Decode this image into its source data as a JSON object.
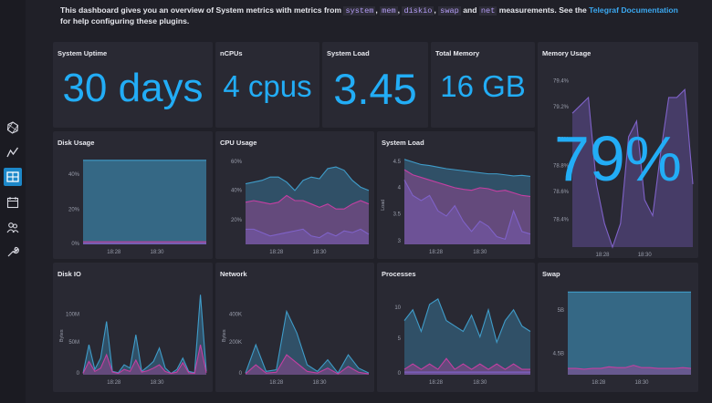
{
  "description": {
    "intro": "This dashboard gives you an overview of System metrics with metrics from",
    "tags": [
      "system",
      "mem",
      "diskio",
      "swap",
      "net"
    ],
    "and_text": "and",
    "measurements_text": "measurements. See the",
    "link": "Telegraf Documentation",
    "outro": "for help configuring these plugins."
  },
  "sidebar": {
    "icons": [
      "logo-icon",
      "graph-icon",
      "dashboards-icon",
      "calendar-icon",
      "users-icon",
      "wrench-icon"
    ],
    "active_index": 2,
    "active_color": "#1d88c9"
  },
  "colors": {
    "accent": "#22adf6",
    "teal_series": "#3f9cc9",
    "magenta_series": "#c53fa2",
    "purple_series": "#7f62c8"
  },
  "stats": [
    {
      "title": "System Uptime",
      "value": "30 days"
    },
    {
      "title": "nCPUs",
      "value": "4 cpus"
    },
    {
      "title": "System Load",
      "value": "3.45"
    },
    {
      "title": "Total Memory",
      "value": "16 GB"
    }
  ],
  "memory_usage": {
    "title": "Memory Usage",
    "value": "79%",
    "y_ticks": [
      "79.4%",
      "79.2%",
      "79%",
      "78.8%",
      "78.6%",
      "78.4%"
    ],
    "x_ticks": [
      "18:28",
      "18:30"
    ]
  },
  "panels": [
    {
      "title": "Disk Usage",
      "y_ticks": [
        "40%",
        "20%",
        "0%"
      ],
      "x_ticks": [
        "18:28",
        "18:30"
      ],
      "ylabel": ""
    },
    {
      "title": "CPU Usage",
      "y_ticks": [
        "60%",
        "40%",
        "20%"
      ],
      "x_ticks": [
        "18:28",
        "18:30"
      ],
      "ylabel": ""
    },
    {
      "title": "System Load",
      "y_ticks": [
        "4.5",
        "4",
        "3.5",
        "3"
      ],
      "x_ticks": [
        "18:28",
        "18:30"
      ],
      "ylabel": "Load"
    },
    {
      "title": "Disk IO",
      "y_ticks": [
        "100M",
        "50M",
        "0"
      ],
      "x_ticks": [
        "18:28",
        "18:30"
      ],
      "ylabel": "Bytes"
    },
    {
      "title": "Network",
      "y_ticks": [
        "400K",
        "200K",
        "0"
      ],
      "x_ticks": [
        "18:28",
        "18:30"
      ],
      "ylabel": "Bytes"
    },
    {
      "title": "Processes",
      "y_ticks": [
        "10",
        "5",
        "0"
      ],
      "x_ticks": [
        "18:28",
        "18:30"
      ],
      "ylabel": ""
    },
    {
      "title": "Swap",
      "y_ticks": [
        "5B",
        "4.5B"
      ],
      "x_ticks": [
        "18:28",
        "18:30"
      ],
      "ylabel": ""
    }
  ],
  "chart_data": [
    {
      "type": "area",
      "title": "Memory Usage",
      "ylim": [
        78.4,
        79.5
      ],
      "series": [
        {
          "values": [
            79.25,
            79.3,
            79.35,
            78.8,
            78.55,
            78.4,
            78.55,
            79.1,
            79.2,
            78.7,
            78.6,
            79.0,
            79.35,
            79.35,
            79.4,
            78.8
          ]
        }
      ]
    },
    {
      "type": "area",
      "title": "Disk Usage",
      "ylim": [
        0,
        50
      ],
      "series": [
        {
          "values": [
            48,
            48,
            48,
            48,
            48,
            48,
            48,
            48,
            48,
            48,
            48,
            48,
            48,
            48,
            48,
            48
          ]
        },
        {
          "values": [
            1.5,
            1.5,
            1.5,
            1.5,
            1.5,
            1.5,
            1.5,
            1.5,
            1.5,
            1.5,
            1.5,
            1.5,
            1.5,
            1.5,
            1.5,
            1.5
          ]
        },
        {
          "values": [
            0.5,
            0.5,
            0.5,
            0.5,
            0.5,
            0.5,
            0.5,
            0.5,
            0.5,
            0.5,
            0.5,
            0.5,
            0.5,
            0.5,
            0.5,
            0.5
          ]
        }
      ]
    },
    {
      "type": "area",
      "title": "CPU Usage",
      "ylim": [
        12,
        64
      ],
      "series": [
        {
          "values": [
            48,
            49,
            50,
            52,
            52,
            49,
            44,
            50,
            52,
            51,
            57,
            58,
            56,
            50,
            46,
            44
          ]
        },
        {
          "values": [
            37,
            38,
            37,
            36,
            37,
            41,
            38,
            38,
            36,
            34,
            36,
            33,
            33,
            36,
            38,
            36
          ]
        },
        {
          "values": [
            21,
            21,
            19,
            17,
            18,
            19,
            20,
            21,
            17,
            16,
            19,
            17,
            20,
            19,
            21,
            18
          ]
        }
      ]
    },
    {
      "type": "area",
      "title": "System Load",
      "ylim": [
        2.85,
        4.55
      ],
      "series": [
        {
          "values": [
            4.5,
            4.45,
            4.4,
            4.38,
            4.35,
            4.32,
            4.3,
            4.28,
            4.26,
            4.24,
            4.22,
            4.22,
            4.2,
            4.18,
            4.19,
            4.17
          ]
        },
        {
          "values": [
            4.3,
            4.2,
            4.15,
            4.1,
            4.05,
            4.0,
            3.95,
            3.92,
            3.9,
            3.95,
            3.93,
            3.88,
            3.9,
            3.85,
            3.8,
            3.78
          ]
        },
        {
          "values": [
            4.1,
            3.8,
            3.7,
            3.8,
            3.5,
            3.4,
            3.6,
            3.3,
            3.1,
            3.3,
            3.2,
            3.0,
            2.95,
            3.5,
            3.1,
            3.05
          ]
        }
      ]
    },
    {
      "type": "area",
      "title": "Disk IO",
      "ylim": [
        0,
        130
      ],
      "series": [
        {
          "values": [
            2,
            45,
            8,
            25,
            80,
            5,
            3,
            15,
            10,
            60,
            5,
            12,
            20,
            40,
            10,
            2,
            8,
            25,
            5,
            3,
            120,
            5
          ]
        },
        {
          "values": [
            2,
            20,
            5,
            10,
            30,
            4,
            2,
            8,
            5,
            22,
            4,
            6,
            10,
            15,
            5,
            2,
            4,
            18,
            3,
            2,
            45,
            3
          ]
        }
      ]
    },
    {
      "type": "area",
      "title": "Network",
      "ylim": [
        0,
        520
      ],
      "series": [
        {
          "values": [
            10,
            180,
            20,
            30,
            380,
            250,
            60,
            20,
            90,
            10,
            120,
            40,
            10
          ]
        },
        {
          "values": [
            5,
            60,
            10,
            15,
            120,
            70,
            20,
            10,
            40,
            5,
            50,
            15,
            5
          ]
        }
      ]
    },
    {
      "type": "area",
      "title": "Processes",
      "ylim": [
        0,
        16
      ],
      "series": [
        {
          "values": [
            10,
            12,
            8,
            13,
            14,
            10,
            9,
            8,
            11,
            7,
            12,
            6,
            10,
            12,
            9,
            8
          ]
        },
        {
          "values": [
            1,
            2,
            1,
            2,
            1,
            3,
            1,
            2,
            1,
            2,
            1,
            2,
            1,
            2,
            1,
            1
          ]
        },
        {
          "values": [
            0.5,
            0.5,
            0.5,
            0.5,
            0.5,
            0.5,
            0.5,
            0.5,
            0.5,
            0.5,
            0.5,
            0.5,
            0.5,
            0.5,
            0.5,
            0.5
          ]
        }
      ]
    },
    {
      "type": "area",
      "title": "Swap",
      "ylim": [
        4.4,
        5.5
      ],
      "series": [
        {
          "values": [
            5.45,
            5.45,
            5.45,
            5.45,
            5.45,
            5.45,
            5.45,
            5.45,
            5.45,
            5.45,
            5.45,
            5.45,
            5.45,
            5.45,
            5.45,
            5.45
          ]
        },
        {
          "values": [
            4.48,
            4.48,
            4.47,
            4.48,
            4.48,
            4.5,
            4.49,
            4.49,
            4.52,
            4.49,
            4.49,
            4.48,
            4.48,
            4.48,
            4.49,
            4.48
          ]
        }
      ]
    }
  ]
}
